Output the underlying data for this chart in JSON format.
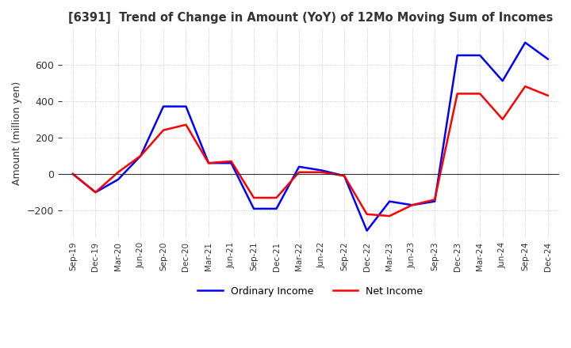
{
  "title": "[6391]  Trend of Change in Amount (YoY) of 12Mo Moving Sum of Incomes",
  "ylabel": "Amount (million yen)",
  "x_labels": [
    "Sep-19",
    "Dec-19",
    "Mar-20",
    "Jun-20",
    "Sep-20",
    "Dec-20",
    "Mar-21",
    "Jun-21",
    "Sep-21",
    "Dec-21",
    "Mar-22",
    "Jun-22",
    "Sep-22",
    "Dec-22",
    "Mar-23",
    "Jun-23",
    "Sep-23",
    "Dec-23",
    "Mar-24",
    "Jun-24",
    "Sep-24",
    "Dec-24"
  ],
  "ordinary_income": [
    0,
    -100,
    -30,
    100,
    370,
    370,
    60,
    60,
    -190,
    -190,
    40,
    20,
    -10,
    -310,
    -150,
    -170,
    -150,
    650,
    650,
    510,
    720,
    630
  ],
  "net_income": [
    0,
    -100,
    10,
    100,
    240,
    270,
    60,
    70,
    -130,
    -130,
    10,
    10,
    -10,
    -220,
    -230,
    -170,
    -140,
    440,
    440,
    300,
    480,
    430
  ],
  "ordinary_color": "#0000ff",
  "net_color": "#ff0000",
  "ylim": [
    -350,
    800
  ],
  "yticks": [
    -200,
    0,
    200,
    400,
    600
  ],
  "bg_color": "#ffffff",
  "grid_color": "#bbbbbb"
}
